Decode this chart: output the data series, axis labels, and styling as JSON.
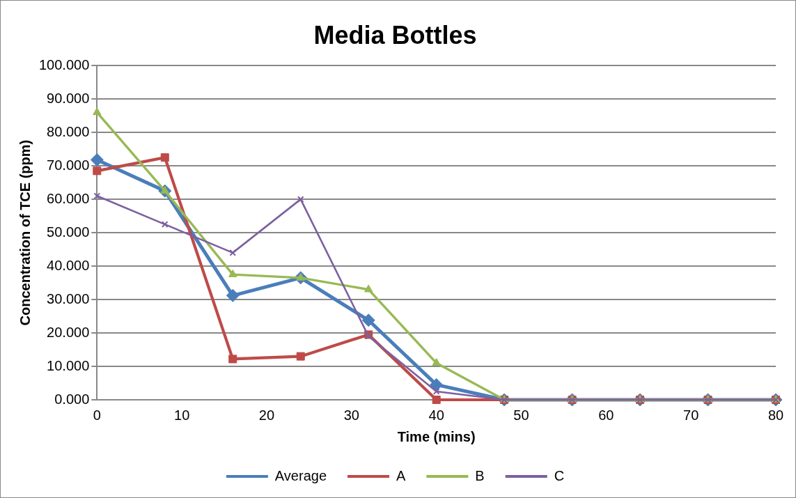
{
  "chart_data": {
    "type": "line",
    "title": "Media Bottles",
    "xlabel": "Time (mins)",
    "ylabel": "Concentration of TCE (ppm)",
    "x": [
      0,
      8,
      16,
      24,
      32,
      40,
      48,
      56,
      64,
      72,
      80
    ],
    "series": [
      {
        "name": "Average",
        "color": "#4a7ebb",
        "marker": "diamond",
        "values": [
          71.8,
          62.5,
          31.2,
          36.5,
          23.8,
          4.5,
          0,
          0,
          0,
          0,
          0
        ]
      },
      {
        "name": "A",
        "color": "#be4b48",
        "marker": "square",
        "values": [
          68.5,
          72.5,
          12.2,
          13,
          19.5,
          0,
          0,
          0,
          0,
          0,
          0
        ]
      },
      {
        "name": "B",
        "color": "#98b954",
        "marker": "triangle",
        "values": [
          86,
          62.5,
          37.5,
          36.5,
          33,
          11,
          0,
          0,
          0,
          0,
          0
        ]
      },
      {
        "name": "C",
        "color": "#7d60a0",
        "marker": "cross",
        "values": [
          61,
          52.5,
          44,
          60,
          19,
          2.5,
          0,
          0,
          0,
          0,
          0
        ]
      }
    ],
    "xlim": [
      0,
      80
    ],
    "xticks": [
      0,
      10,
      20,
      30,
      40,
      50,
      60,
      70,
      80
    ],
    "ylim": [
      0,
      100
    ],
    "yticks": [
      {
        "value": 0,
        "label": "0.000"
      },
      {
        "value": 10,
        "label": "10.000"
      },
      {
        "value": 20,
        "label": "20.000"
      },
      {
        "value": 30,
        "label": "30.000"
      },
      {
        "value": 40,
        "label": "40.000"
      },
      {
        "value": 50,
        "label": "50.000"
      },
      {
        "value": 60,
        "label": "60.000"
      },
      {
        "value": 70,
        "label": "70.000"
      },
      {
        "value": 80,
        "label": "80.000"
      },
      {
        "value": 90,
        "label": "90.000"
      },
      {
        "value": 100,
        "label": "100.000"
      }
    ],
    "grid": "y",
    "legend": "bottom",
    "line_style": "solid"
  }
}
